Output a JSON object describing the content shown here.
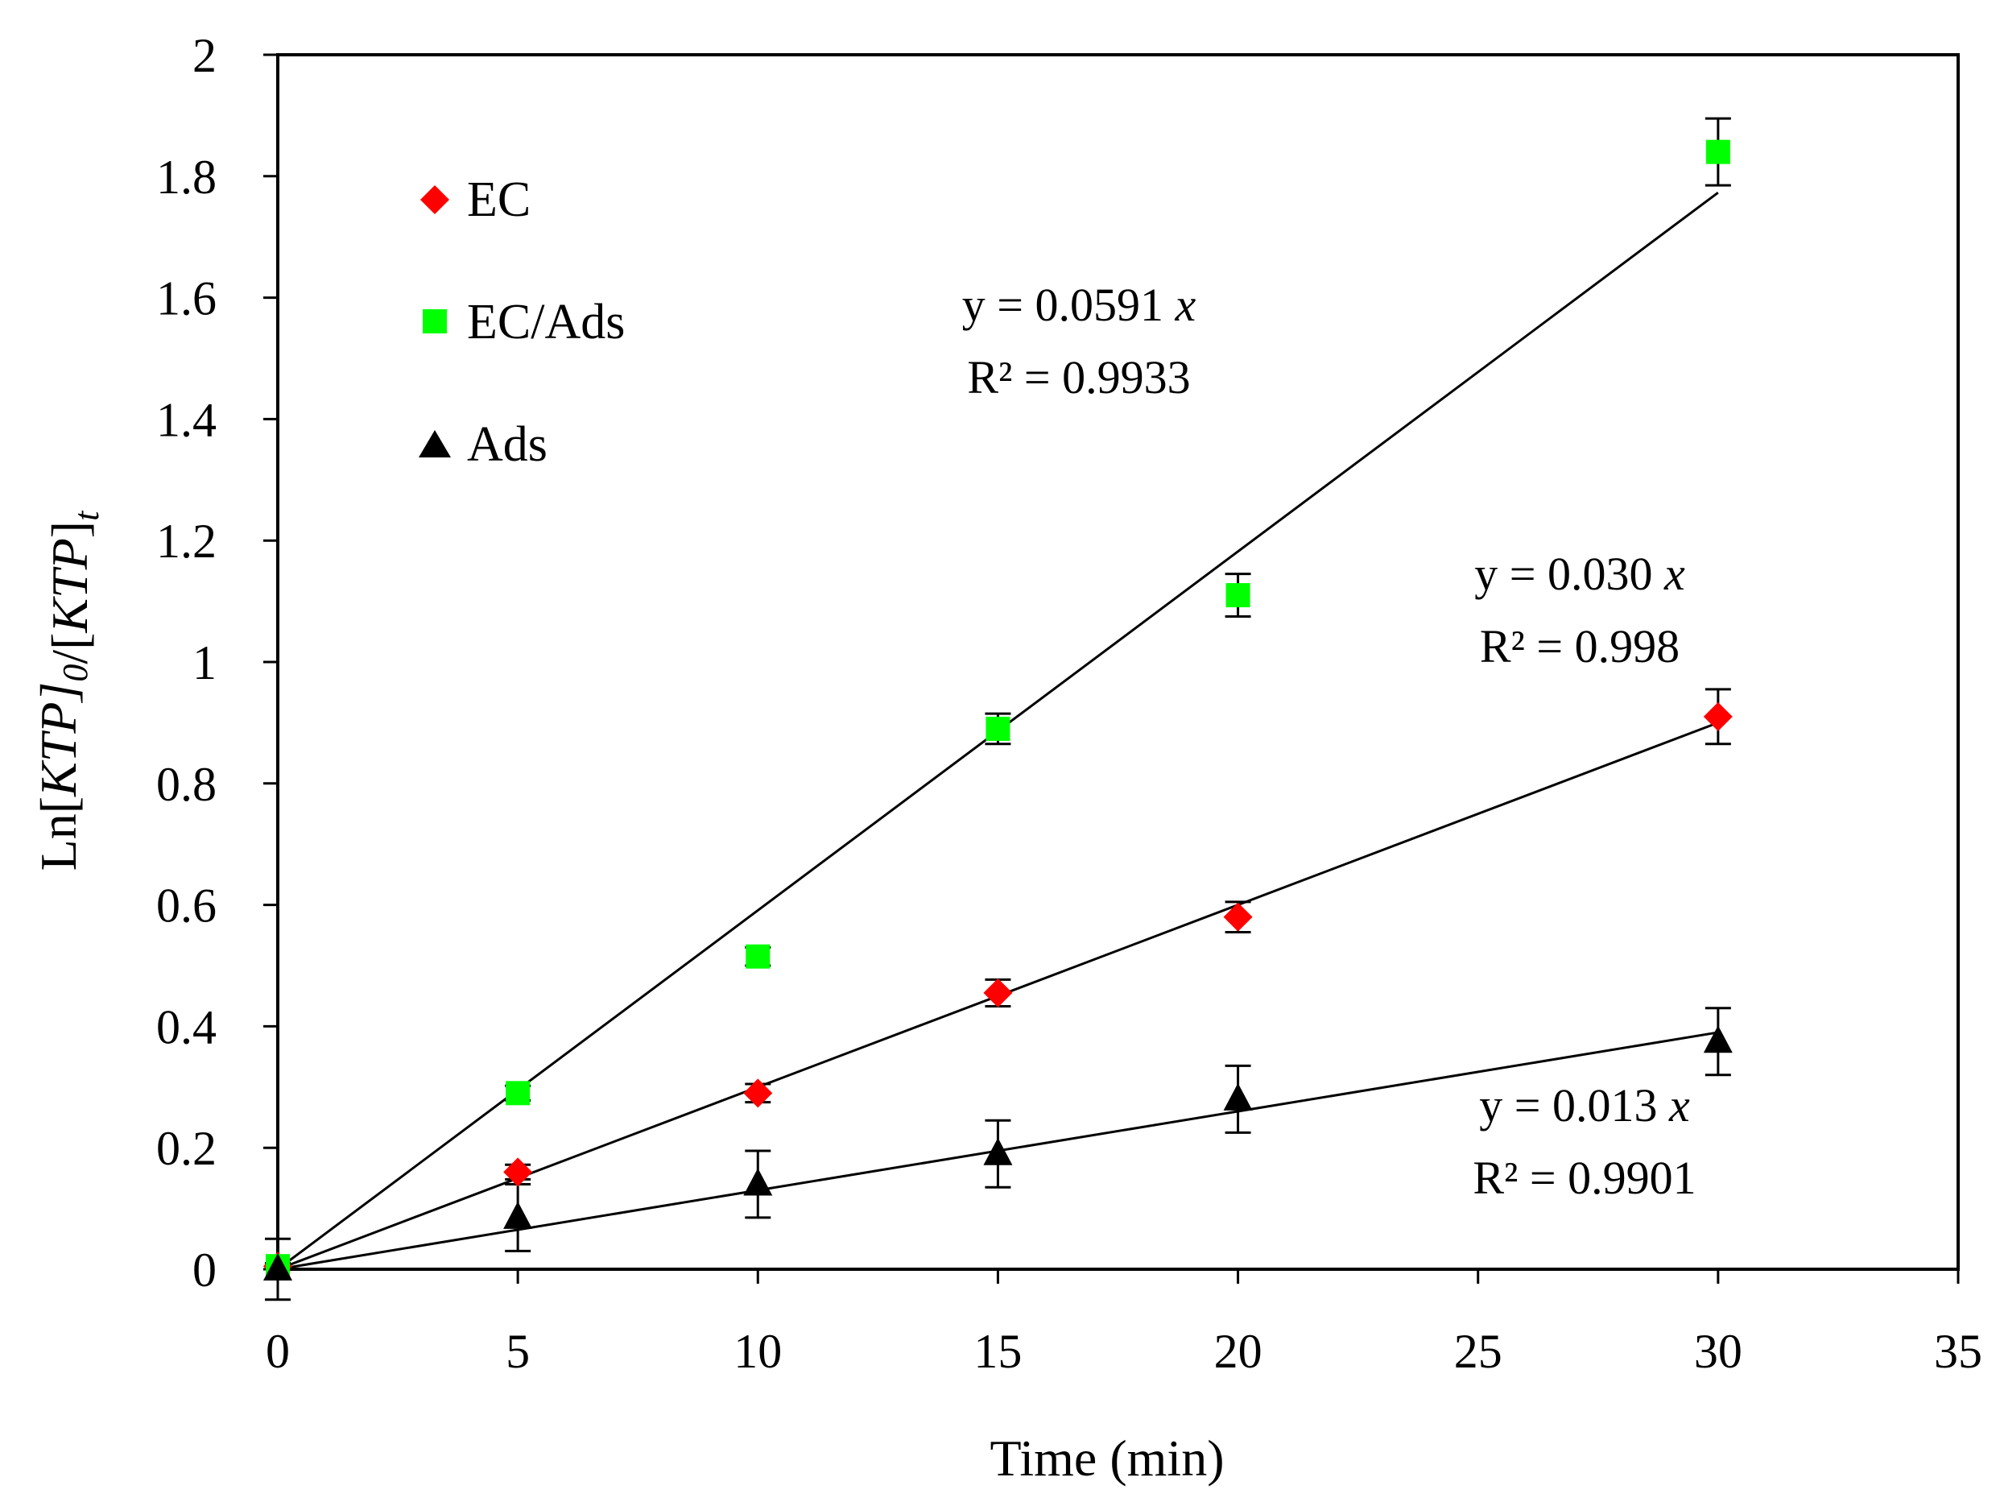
{
  "chart_data": {
    "type": "scatter",
    "title": "",
    "xlabel": "Time (min)",
    "ylabel": {
      "parts": [
        {
          "text": "Ln"
        },
        {
          "text": "[",
          "style": "normal"
        },
        {
          "text": "KTP",
          "style": "italic"
        },
        {
          "text": "]",
          "style": "italic"
        },
        {
          "text": "0",
          "style": "sub-italic"
        },
        {
          "text": "/[",
          "style": "normal"
        },
        {
          "text": "KTP",
          "style": "italic"
        },
        {
          "text": "]",
          "style": "normal"
        },
        {
          "text": "t",
          "style": "sub-italic"
        }
      ]
    },
    "xlim": [
      0,
      35
    ],
    "ylim": [
      0,
      2
    ],
    "xticks": [
      "0",
      "5",
      "10",
      "15",
      "20",
      "25",
      "30",
      "35"
    ],
    "yticks": [
      "0",
      "0.2",
      "0.4",
      "0.6",
      "0.8",
      "1",
      "1.2",
      "1.4",
      "1.6",
      "1.8",
      "2"
    ],
    "xtick_values": [
      0,
      5,
      10,
      15,
      20,
      25,
      30,
      35
    ],
    "ytick_values": [
      0,
      0.2,
      0.4,
      0.6,
      0.8,
      1,
      1.2,
      1.4,
      1.6,
      1.8,
      2
    ],
    "grid": false,
    "legend_position": "top-left",
    "series": [
      {
        "name": "EC",
        "marker": "diamond",
        "color": "#ff0000",
        "x": [
          0,
          5,
          10,
          15,
          20,
          30
        ],
        "y": [
          0.005,
          0.16,
          0.29,
          0.455,
          0.58,
          0.91
        ],
        "error": [
          0.005,
          0.012,
          0.015,
          0.022,
          0.025,
          0.045
        ],
        "fit_slope": 0.03,
        "equation": "y = 0.030 x",
        "r2": "R² = 0.998"
      },
      {
        "name": "EC/Ads",
        "marker": "square",
        "color": "#00ff00",
        "x": [
          0,
          5,
          10,
          15,
          20,
          30
        ],
        "y": [
          0.005,
          0.29,
          0.515,
          0.89,
          1.11,
          1.84
        ],
        "error": [
          0.005,
          0.012,
          0.015,
          0.025,
          0.035,
          0.055
        ],
        "fit_slope": 0.0591,
        "equation": "y = 0.0591 x",
        "r2": "R² = 0.9933"
      },
      {
        "name": "Ads",
        "marker": "triangle",
        "color": "#000000",
        "x": [
          0,
          5,
          10,
          15,
          20,
          30
        ],
        "y": [
          0,
          0.085,
          0.14,
          0.19,
          0.28,
          0.375
        ],
        "error": [
          0.05,
          0.055,
          0.055,
          0.055,
          0.055,
          0.055
        ],
        "fit_slope": 0.013,
        "equation": "y = 0.013 x",
        "r2": "R² = 0.9901"
      }
    ]
  }
}
